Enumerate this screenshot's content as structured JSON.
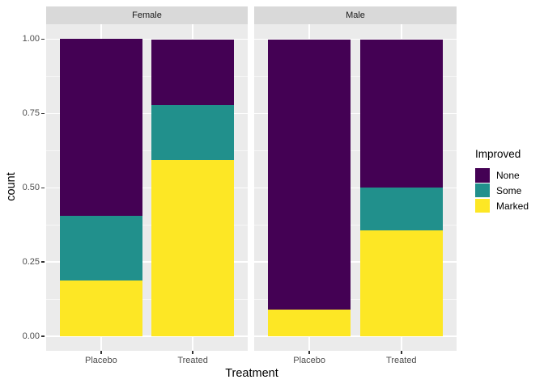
{
  "chart_data": {
    "type": "bar",
    "stacked": true,
    "position": "fill",
    "title": "",
    "xlabel": "Treatment",
    "ylabel": "count",
    "ylim": [
      0,
      1
    ],
    "grid": true,
    "legend_position": "right",
    "legend_title": "Improved",
    "categories": [
      "Placebo",
      "Treated"
    ],
    "series_order": [
      "None",
      "Some",
      "Marked"
    ],
    "series_colors": {
      "None": "#440154",
      "Some": "#21908C",
      "Marked": "#FDE725"
    },
    "yticks": [
      {
        "label": "0.00",
        "value": 0
      },
      {
        "label": "0.25",
        "value": 0.25
      },
      {
        "label": "0.50",
        "value": 0.5
      },
      {
        "label": "0.75",
        "value": 0.75
      },
      {
        "label": "1.00",
        "value": 1
      }
    ],
    "yticks_minor": [
      0.125,
      0.375,
      0.625,
      0.875
    ],
    "facets": [
      {
        "label": "Female",
        "series": [
          {
            "name": "None",
            "values": [
              0.5938,
              0.2222
            ]
          },
          {
            "name": "Some",
            "values": [
              0.2188,
              0.1852
            ]
          },
          {
            "name": "Marked",
            "values": [
              0.1875,
              0.5926
            ]
          }
        ]
      },
      {
        "label": "Male",
        "series": [
          {
            "name": "None",
            "values": [
              0.9091,
              0.5
            ]
          },
          {
            "name": "Some",
            "values": [
              0.0,
              0.1429
            ]
          },
          {
            "name": "Marked",
            "values": [
              0.0909,
              0.3571
            ]
          }
        ]
      }
    ],
    "colors": {
      "panel_bg": "#EBEBEB",
      "strip_bg": "#D9D9D9",
      "tick_text": "#4D4D4D",
      "grid": "#FFFFFF"
    }
  }
}
